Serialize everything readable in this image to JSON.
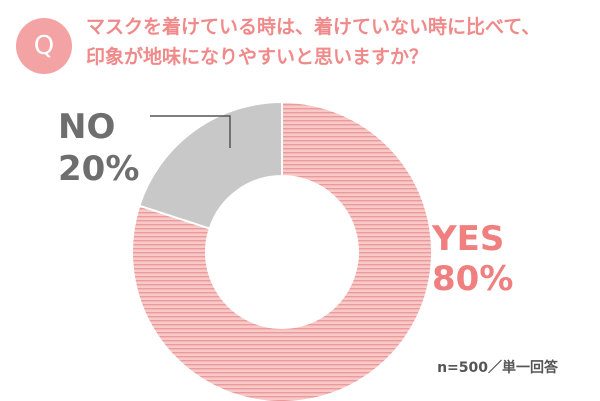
{
  "question": {
    "badge": "Q",
    "line1": "マスクを着けている時は、着けていない時に比べて、",
    "line2": "印象が地味になりやすいと思いますか？"
  },
  "note": "n=500／単一回答",
  "colors": {
    "accent": "#f08a8a",
    "yes_fill": "#f7c9c9",
    "yes_stripe": "#ec9a9a",
    "no_fill": "#c8c8c8",
    "label_yes": "#f07f7f",
    "label_no": "#6e6e6e"
  },
  "chart_data": {
    "type": "pie",
    "donut": true,
    "categories": [
      "YES",
      "NO"
    ],
    "values": [
      80,
      20
    ],
    "value_labels": [
      "80%",
      "20%"
    ],
    "title": "",
    "legend": "none"
  }
}
